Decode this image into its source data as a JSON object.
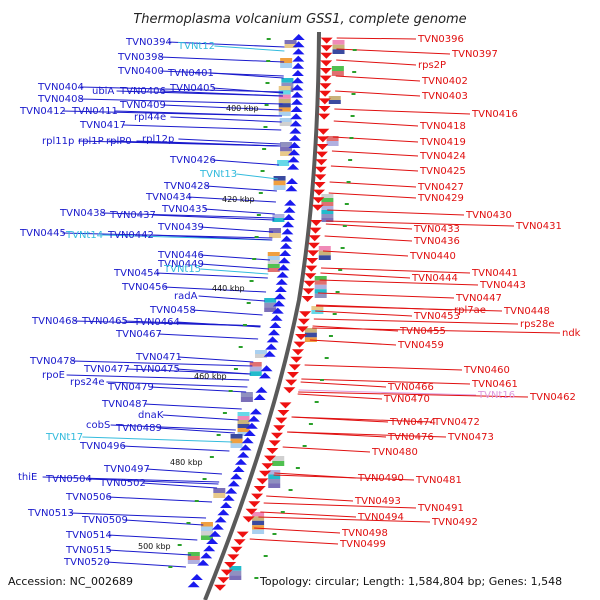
{
  "title": "Thermoplasma volcanium GSS1, complete genome",
  "footer": {
    "accession": "Accession: NC_002689",
    "stats": "Topology: circular; Length: 1,584,804 bp; Genes: 1,548"
  },
  "scale_labels": [
    "400 kbp",
    "420 kbp",
    "440 kbp",
    "460 kbp",
    "480 kbp",
    "500 kbp"
  ],
  "colors": {
    "forward_label": "#1a1acc",
    "reverse_label": "#e01010",
    "rna_label": "#33bbdd",
    "pseudo_label": "#dd99dd",
    "backbone": "#555555"
  },
  "left_labels": [
    {
      "text": "TVN0394",
      "type": "gene"
    },
    {
      "text": "TVNt12",
      "type": "rna"
    },
    {
      "text": "TVN0398",
      "type": "gene"
    },
    {
      "text": "TVN0400",
      "type": "gene"
    },
    {
      "text": "TVN0401",
      "type": "gene"
    },
    {
      "text": "TVN0404",
      "type": "gene"
    },
    {
      "text": "TVN0406",
      "type": "gene"
    },
    {
      "text": "TVN0405",
      "type": "gene"
    },
    {
      "text": "TVN0408",
      "type": "gene"
    },
    {
      "text": "ubiA",
      "type": "gene"
    },
    {
      "text": "TVN0409",
      "type": "gene"
    },
    {
      "text": "TVN0412",
      "type": "gene"
    },
    {
      "text": "TVN0411",
      "type": "gene"
    },
    {
      "text": "rpl44e",
      "type": "gene"
    },
    {
      "text": "TVN0417",
      "type": "gene"
    },
    {
      "text": "rpl11p",
      "type": "gene"
    },
    {
      "text": "rpl1P",
      "type": "gene"
    },
    {
      "text": "rplP0",
      "type": "gene"
    },
    {
      "text": "rpl12p",
      "type": "gene"
    },
    {
      "text": "TVN0426",
      "type": "gene"
    },
    {
      "text": "TVNt13",
      "type": "rna"
    },
    {
      "text": "TVN0428",
      "type": "gene"
    },
    {
      "text": "TVN0434",
      "type": "gene"
    },
    {
      "text": "TVN0435",
      "type": "gene"
    },
    {
      "text": "TVN0438",
      "type": "gene"
    },
    {
      "text": "TVN0437",
      "type": "gene"
    },
    {
      "text": "TVN0439",
      "type": "gene"
    },
    {
      "text": "TVN0445",
      "type": "gene"
    },
    {
      "text": "TVNt14",
      "type": "rna"
    },
    {
      "text": "TVN0442",
      "type": "gene"
    },
    {
      "text": "TVN0446",
      "type": "gene"
    },
    {
      "text": "TVN0449",
      "type": "gene"
    },
    {
      "text": "TVN0454",
      "type": "gene"
    },
    {
      "text": "TVNt15",
      "type": "rna"
    },
    {
      "text": "TVN0456",
      "type": "gene"
    },
    {
      "text": "radA",
      "type": "gene"
    },
    {
      "text": "TVN0458",
      "type": "gene"
    },
    {
      "text": "TVN0468",
      "type": "gene"
    },
    {
      "text": "TVN0465",
      "type": "gene"
    },
    {
      "text": "TVN0464",
      "type": "gene"
    },
    {
      "text": "TVN0467",
      "type": "gene"
    },
    {
      "text": "TVN0471",
      "type": "gene"
    },
    {
      "text": "TVN0478",
      "type": "gene"
    },
    {
      "text": "TVN0477",
      "type": "gene"
    },
    {
      "text": "TVN0475",
      "type": "gene"
    },
    {
      "text": "rpoE",
      "type": "gene"
    },
    {
      "text": "rps24e",
      "type": "gene"
    },
    {
      "text": "TVN0479",
      "type": "gene"
    },
    {
      "text": "TVN0487",
      "type": "gene"
    },
    {
      "text": "dnaK",
      "type": "gene"
    },
    {
      "text": "cobS",
      "type": "gene"
    },
    {
      "text": "TVN0489",
      "type": "gene"
    },
    {
      "text": "TVNt17",
      "type": "rna"
    },
    {
      "text": "TVN0496",
      "type": "gene"
    },
    {
      "text": "TVN0497",
      "type": "gene"
    },
    {
      "text": "thiE",
      "type": "gene"
    },
    {
      "text": "TVN0504",
      "type": "gene"
    },
    {
      "text": "TVN0502",
      "type": "gene"
    },
    {
      "text": "TVN0506",
      "type": "gene"
    },
    {
      "text": "TVN0513",
      "type": "gene"
    },
    {
      "text": "TVN0509",
      "type": "gene"
    },
    {
      "text": "TVN0514",
      "type": "gene"
    },
    {
      "text": "TVN0515",
      "type": "gene"
    },
    {
      "text": "TVN0520",
      "type": "gene"
    }
  ],
  "right_labels": [
    {
      "text": "TVN0396",
      "type": "gene"
    },
    {
      "text": "TVN0397",
      "type": "gene"
    },
    {
      "text": "rps2P",
      "type": "gene"
    },
    {
      "text": "TVN0402",
      "type": "gene"
    },
    {
      "text": "TVN0403",
      "type": "gene"
    },
    {
      "text": "TVN0416",
      "type": "gene"
    },
    {
      "text": "TVN0418",
      "type": "gene"
    },
    {
      "text": "TVN0419",
      "type": "gene"
    },
    {
      "text": "TVN0424",
      "type": "gene"
    },
    {
      "text": "TVN0425",
      "type": "gene"
    },
    {
      "text": "TVN0427",
      "type": "gene"
    },
    {
      "text": "TVN0429",
      "type": "gene"
    },
    {
      "text": "TVN0430",
      "type": "gene"
    },
    {
      "text": "TVN0431",
      "type": "gene"
    },
    {
      "text": "TVN0433",
      "type": "gene"
    },
    {
      "text": "TVN0436",
      "type": "gene"
    },
    {
      "text": "TVN0440",
      "type": "gene"
    },
    {
      "text": "TVN0441",
      "type": "gene"
    },
    {
      "text": "TVN0444",
      "type": "gene"
    },
    {
      "text": "TVN0443",
      "type": "gene"
    },
    {
      "text": "TVN0447",
      "type": "gene"
    },
    {
      "text": "rpl7ae",
      "type": "gene"
    },
    {
      "text": "TVN0448",
      "type": "gene"
    },
    {
      "text": "rps28e",
      "type": "gene"
    },
    {
      "text": "ndk",
      "type": "gene"
    },
    {
      "text": "TVN0453",
      "type": "gene"
    },
    {
      "text": "TVN0455",
      "type": "gene"
    },
    {
      "text": "TVN0459",
      "type": "gene"
    },
    {
      "text": "TVN0460",
      "type": "gene"
    },
    {
      "text": "TVN0461",
      "type": "gene"
    },
    {
      "text": "TVN0466",
      "type": "gene"
    },
    {
      "text": "TVNt16",
      "type": "pseudo"
    },
    {
      "text": "TVN0462",
      "type": "gene"
    },
    {
      "text": "TVN0470",
      "type": "gene"
    },
    {
      "text": "TVN0474",
      "type": "gene"
    },
    {
      "text": "TVN0472",
      "type": "gene"
    },
    {
      "text": "TVN0476",
      "type": "gene"
    },
    {
      "text": "TVN0473",
      "type": "gene"
    },
    {
      "text": "TVN0480",
      "type": "gene"
    },
    {
      "text": "TVN0490",
      "type": "gene"
    },
    {
      "text": "TVN0481",
      "type": "gene"
    },
    {
      "text": "TVN0493",
      "type": "gene"
    },
    {
      "text": "TVN0491",
      "type": "gene"
    },
    {
      "text": "TVN0494",
      "type": "gene"
    },
    {
      "text": "TVN0492",
      "type": "gene"
    },
    {
      "text": "TVN0498",
      "type": "gene"
    },
    {
      "text": "TVN0499",
      "type": "gene"
    }
  ]
}
